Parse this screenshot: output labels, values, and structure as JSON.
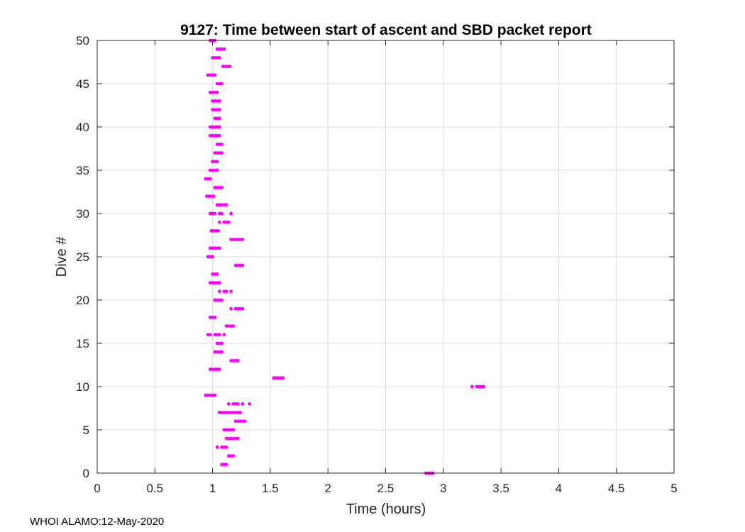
{
  "chart_data": {
    "type": "scatter",
    "title": "9127: Time between start of ascent and SBD packet report",
    "xlabel": "Time (hours)",
    "ylabel": "Dive #",
    "xlim": [
      0,
      5
    ],
    "ylim": [
      0,
      50
    ],
    "xticks": [
      "0",
      "0.5",
      "1",
      "1.5",
      "2",
      "2.5",
      "3",
      "3.5",
      "4",
      "4.5",
      "5"
    ],
    "yticks": [
      "0",
      "5",
      "10",
      "15",
      "20",
      "25",
      "30",
      "35",
      "40",
      "45",
      "50"
    ],
    "grid": true,
    "marker_color": "#ff00ff",
    "series": [
      {
        "points": [
          [
            2.85,
            0
          ],
          [
            2.87,
            0
          ],
          [
            2.89,
            0
          ],
          [
            2.91,
            0
          ],
          [
            1.08,
            1
          ],
          [
            1.1,
            1
          ],
          [
            1.12,
            1
          ],
          [
            1.14,
            2
          ],
          [
            1.16,
            2
          ],
          [
            1.18,
            2
          ],
          [
            1.04,
            3
          ],
          [
            1.08,
            3
          ],
          [
            1.1,
            3
          ],
          [
            1.12,
            3
          ],
          [
            1.12,
            4
          ],
          [
            1.14,
            4
          ],
          [
            1.16,
            4
          ],
          [
            1.18,
            4
          ],
          [
            1.2,
            4
          ],
          [
            1.22,
            4
          ],
          [
            1.1,
            5
          ],
          [
            1.12,
            5
          ],
          [
            1.14,
            5
          ],
          [
            1.16,
            5
          ],
          [
            1.18,
            5
          ],
          [
            1.2,
            6
          ],
          [
            1.22,
            6
          ],
          [
            1.24,
            6
          ],
          [
            1.26,
            6
          ],
          [
            1.28,
            6
          ],
          [
            1.06,
            7
          ],
          [
            1.08,
            7
          ],
          [
            1.1,
            7
          ],
          [
            1.12,
            7
          ],
          [
            1.14,
            7
          ],
          [
            1.16,
            7
          ],
          [
            1.18,
            7
          ],
          [
            1.2,
            7
          ],
          [
            1.22,
            7
          ],
          [
            1.24,
            7
          ],
          [
            1.14,
            8
          ],
          [
            1.18,
            8
          ],
          [
            1.2,
            8
          ],
          [
            1.22,
            8
          ],
          [
            1.26,
            8
          ],
          [
            1.32,
            8
          ],
          [
            0.94,
            9
          ],
          [
            0.96,
            9
          ],
          [
            0.98,
            9
          ],
          [
            1.0,
            9
          ],
          [
            1.02,
            9
          ],
          [
            3.25,
            10
          ],
          [
            3.29,
            10
          ],
          [
            3.31,
            10
          ],
          [
            3.33,
            10
          ],
          [
            3.35,
            10
          ],
          [
            1.53,
            11
          ],
          [
            1.55,
            11
          ],
          [
            1.57,
            11
          ],
          [
            1.59,
            11
          ],
          [
            1.61,
            11
          ],
          [
            0.98,
            12
          ],
          [
            1.0,
            12
          ],
          [
            1.02,
            12
          ],
          [
            1.04,
            12
          ],
          [
            1.06,
            12
          ],
          [
            1.16,
            13
          ],
          [
            1.18,
            13
          ],
          [
            1.2,
            13
          ],
          [
            1.22,
            13
          ],
          [
            1.02,
            14
          ],
          [
            1.04,
            14
          ],
          [
            1.06,
            14
          ],
          [
            1.08,
            14
          ],
          [
            1.04,
            15
          ],
          [
            1.06,
            15
          ],
          [
            1.08,
            15
          ],
          [
            0.96,
            16
          ],
          [
            0.98,
            16
          ],
          [
            1.02,
            16
          ],
          [
            1.04,
            16
          ],
          [
            1.06,
            16
          ],
          [
            1.1,
            16
          ],
          [
            1.12,
            17
          ],
          [
            1.14,
            17
          ],
          [
            1.16,
            17
          ],
          [
            1.18,
            17
          ],
          [
            0.98,
            18
          ],
          [
            1.0,
            18
          ],
          [
            1.02,
            18
          ],
          [
            1.16,
            19
          ],
          [
            1.2,
            19
          ],
          [
            1.22,
            19
          ],
          [
            1.24,
            19
          ],
          [
            1.26,
            19
          ],
          [
            1.02,
            20
          ],
          [
            1.04,
            20
          ],
          [
            1.06,
            20
          ],
          [
            1.08,
            20
          ],
          [
            1.06,
            21
          ],
          [
            1.1,
            21
          ],
          [
            1.12,
            21
          ],
          [
            1.16,
            21
          ],
          [
            0.98,
            22
          ],
          [
            1.0,
            22
          ],
          [
            1.02,
            22
          ],
          [
            1.04,
            22
          ],
          [
            1.06,
            22
          ],
          [
            1.0,
            23
          ],
          [
            1.02,
            23
          ],
          [
            1.04,
            23
          ],
          [
            1.2,
            24
          ],
          [
            1.22,
            24
          ],
          [
            1.24,
            24
          ],
          [
            1.26,
            24
          ],
          [
            0.96,
            25
          ],
          [
            0.98,
            25
          ],
          [
            1.0,
            25
          ],
          [
            0.98,
            26
          ],
          [
            1.0,
            26
          ],
          [
            1.02,
            26
          ],
          [
            1.04,
            26
          ],
          [
            1.06,
            26
          ],
          [
            1.16,
            27
          ],
          [
            1.18,
            27
          ],
          [
            1.2,
            27
          ],
          [
            1.22,
            27
          ],
          [
            1.24,
            27
          ],
          [
            1.26,
            27
          ],
          [
            0.99,
            28
          ],
          [
            1.01,
            28
          ],
          [
            1.03,
            28
          ],
          [
            1.05,
            28
          ],
          [
            1.06,
            29
          ],
          [
            1.1,
            29
          ],
          [
            1.12,
            29
          ],
          [
            1.14,
            29
          ],
          [
            0.98,
            30
          ],
          [
            1.0,
            30
          ],
          [
            1.02,
            30
          ],
          [
            1.06,
            30
          ],
          [
            1.08,
            30
          ],
          [
            1.16,
            30
          ],
          [
            1.04,
            31
          ],
          [
            1.06,
            31
          ],
          [
            1.08,
            31
          ],
          [
            1.1,
            31
          ],
          [
            1.12,
            31
          ],
          [
            0.95,
            32
          ],
          [
            0.97,
            32
          ],
          [
            0.99,
            32
          ],
          [
            1.01,
            32
          ],
          [
            1.02,
            33
          ],
          [
            1.04,
            33
          ],
          [
            1.06,
            33
          ],
          [
            1.08,
            33
          ],
          [
            0.94,
            34
          ],
          [
            0.96,
            34
          ],
          [
            0.98,
            34
          ],
          [
            0.98,
            35
          ],
          [
            1.0,
            35
          ],
          [
            1.02,
            35
          ],
          [
            1.04,
            35
          ],
          [
            1.0,
            36
          ],
          [
            1.02,
            36
          ],
          [
            1.04,
            36
          ],
          [
            1.02,
            37
          ],
          [
            1.04,
            37
          ],
          [
            1.06,
            37
          ],
          [
            1.08,
            37
          ],
          [
            1.04,
            38
          ],
          [
            1.06,
            38
          ],
          [
            1.08,
            38
          ],
          [
            0.98,
            39
          ],
          [
            1.0,
            39
          ],
          [
            1.02,
            39
          ],
          [
            1.04,
            39
          ],
          [
            1.06,
            39
          ],
          [
            0.98,
            40
          ],
          [
            1.0,
            40
          ],
          [
            1.02,
            40
          ],
          [
            1.04,
            40
          ],
          [
            1.06,
            40
          ],
          [
            1.02,
            41
          ],
          [
            1.04,
            41
          ],
          [
            1.06,
            41
          ],
          [
            1.0,
            42
          ],
          [
            1.02,
            42
          ],
          [
            1.04,
            42
          ],
          [
            1.06,
            42
          ],
          [
            1.0,
            43
          ],
          [
            1.02,
            43
          ],
          [
            1.04,
            43
          ],
          [
            1.06,
            43
          ],
          [
            0.98,
            44
          ],
          [
            1.0,
            44
          ],
          [
            1.02,
            44
          ],
          [
            1.04,
            44
          ],
          [
            1.04,
            45
          ],
          [
            1.06,
            45
          ],
          [
            1.08,
            45
          ],
          [
            0.96,
            46
          ],
          [
            0.98,
            46
          ],
          [
            1.0,
            46
          ],
          [
            1.02,
            46
          ],
          [
            1.09,
            47
          ],
          [
            1.11,
            47
          ],
          [
            1.13,
            47
          ],
          [
            1.15,
            47
          ],
          [
            1.0,
            48
          ],
          [
            1.02,
            48
          ],
          [
            1.04,
            48
          ],
          [
            1.06,
            48
          ],
          [
            1.04,
            49
          ],
          [
            1.06,
            49
          ],
          [
            1.08,
            49
          ],
          [
            1.1,
            49
          ],
          [
            0.98,
            50
          ],
          [
            1.0,
            50
          ],
          [
            1.02,
            50
          ]
        ]
      }
    ]
  },
  "footer": {
    "text": "WHOI ALAMO:12-May-2020"
  }
}
